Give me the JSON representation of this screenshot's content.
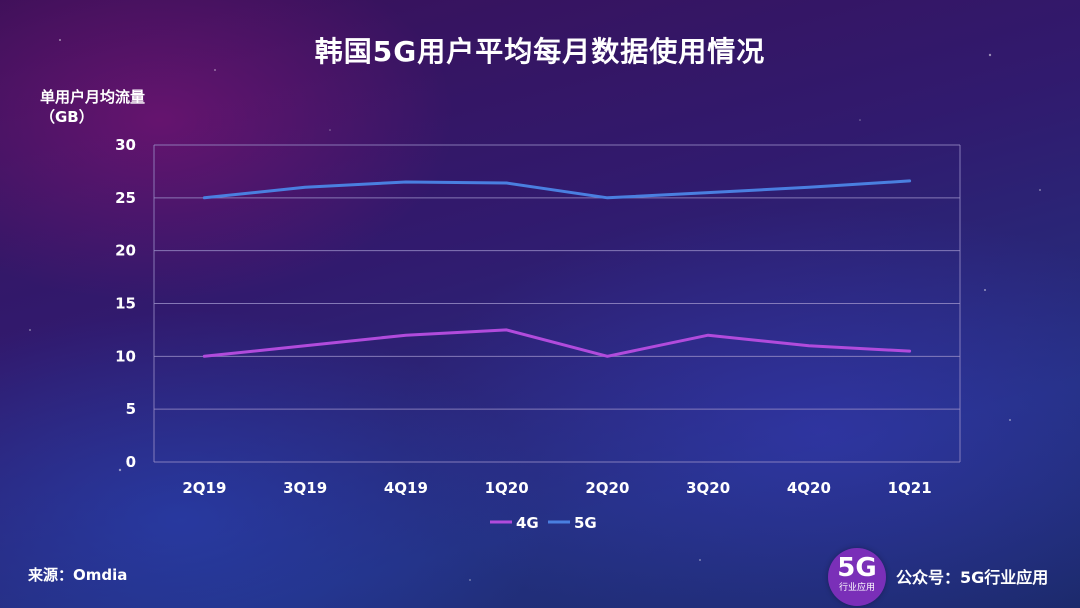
{
  "title": "韩国5G用户平均每月数据使用情况",
  "source": "来源：Omdia",
  "account": "公众号：5G行业应用",
  "logo": {
    "main": "5G",
    "sub": "行业应用"
  },
  "colors": {
    "4G": "#b14bdc",
    "5G": "#4a7fe0",
    "grid": "#9a8fc8"
  },
  "chart_data": {
    "type": "line",
    "title": "韩国5G用户平均每月数据使用情况",
    "ylabel": "单用户月均流量",
    "ylabel_unit": "（GB）",
    "xlabel": "",
    "categories": [
      "2Q19",
      "3Q19",
      "4Q19",
      "1Q20",
      "2Q20",
      "3Q20",
      "4Q20",
      "1Q21"
    ],
    "ylim": [
      0,
      30
    ],
    "yticks": [
      0,
      5,
      10,
      15,
      20,
      25,
      30
    ],
    "grid": true,
    "legend_position": "bottom",
    "series": [
      {
        "name": "4G",
        "color": "#b14bdc",
        "values": [
          10,
          11,
          12,
          12.5,
          10,
          12,
          11,
          10.5
        ]
      },
      {
        "name": "5G",
        "color": "#4a7fe0",
        "values": [
          25,
          26,
          26.5,
          26.4,
          25,
          25.5,
          26,
          26.6
        ]
      }
    ]
  }
}
